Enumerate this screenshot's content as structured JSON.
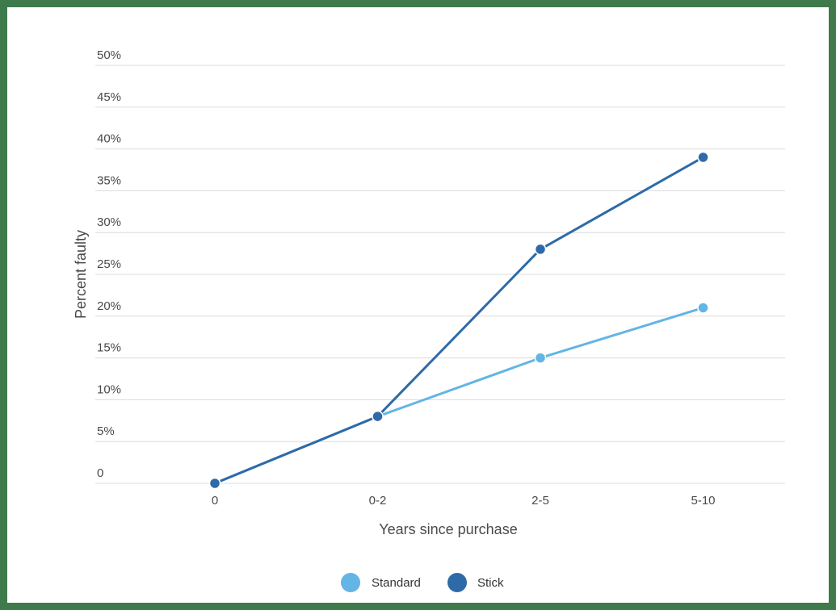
{
  "colors": {
    "frame": "#3f7a4c",
    "grid": "#dcdcdc",
    "standard": "#62b5e5",
    "stick": "#2e6aa8"
  },
  "chart_data": {
    "type": "line",
    "xlabel": "Years since purchase",
    "ylabel": "Percent faulty",
    "categories": [
      "0",
      "0-2",
      "2-5",
      "5-10"
    ],
    "ylim": [
      0,
      50
    ],
    "yticks": [
      0,
      5,
      10,
      15,
      20,
      25,
      30,
      35,
      40,
      45,
      50
    ],
    "ytick_labels": [
      "0",
      "5%",
      "10%",
      "15%",
      "20%",
      "25%",
      "30%",
      "35%",
      "40%",
      "45%",
      "50%"
    ],
    "grid": true,
    "legend_position": "bottom-center",
    "series": [
      {
        "name": "Standard",
        "color": "#62b5e5",
        "values": [
          0,
          8,
          15,
          21
        ]
      },
      {
        "name": "Stick",
        "color": "#2e6aa8",
        "values": [
          0,
          8,
          28,
          39
        ]
      }
    ]
  }
}
